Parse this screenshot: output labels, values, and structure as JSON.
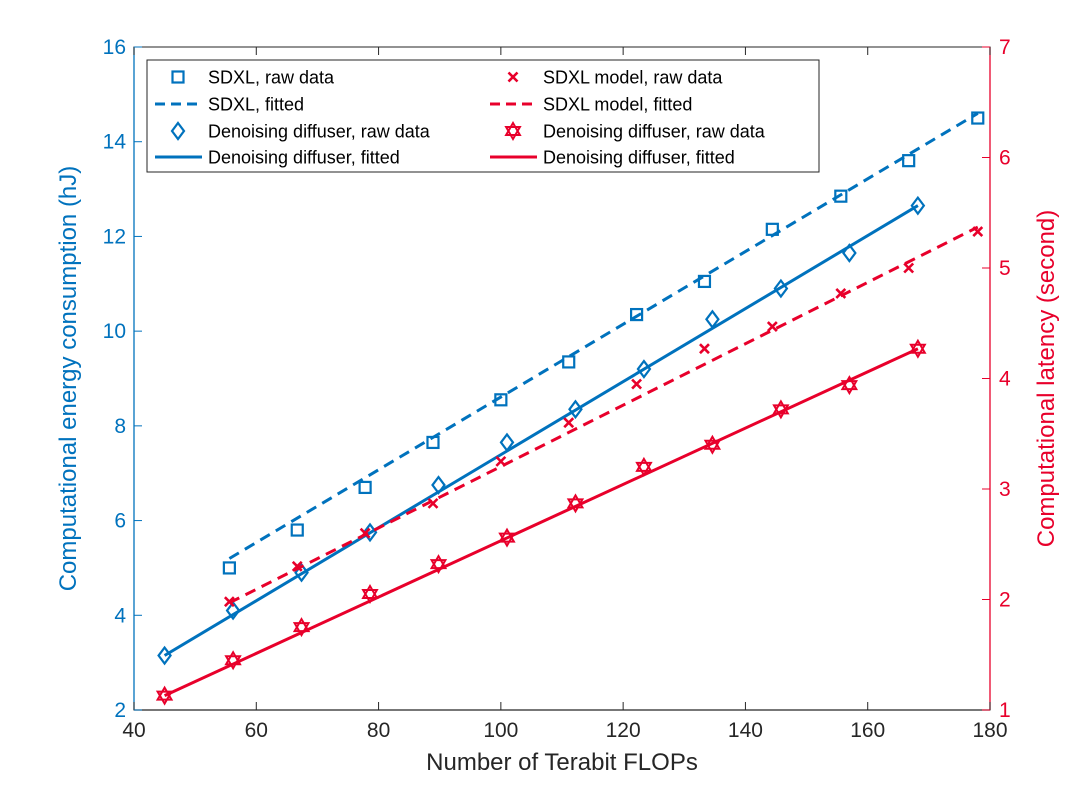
{
  "colors": {
    "left_axis": "#0072BD",
    "right_axis": "#E8002B",
    "blue": "#0072BD",
    "red": "#E8002B"
  },
  "chart_data": {
    "type": "scatter",
    "title": "",
    "xlabel": "Number of Terabit FLOPs",
    "ylabel_left": "Computational energy consumption (hJ)",
    "ylabel_right": "Computational latency (second)",
    "xlim": [
      40,
      180
    ],
    "ylim_left": [
      2,
      16
    ],
    "ylim_right": [
      1,
      7
    ],
    "xticks": [
      "40",
      "60",
      "80",
      "100",
      "120",
      "140",
      "160",
      "180"
    ],
    "yticks_left": [
      "2",
      "4",
      "6",
      "8",
      "10",
      "12",
      "14",
      "16"
    ],
    "yticks_right": [
      "1",
      "2",
      "3",
      "4",
      "5",
      "6",
      "7"
    ],
    "legend_position": "top-left",
    "series": [
      {
        "name": "SDXL, raw data",
        "axis": "left",
        "style": "square-marker",
        "color": "#0072BD",
        "x": [
          55.6,
          66.7,
          77.8,
          88.9,
          100,
          111.1,
          122.2,
          133.3,
          144.4,
          155.6,
          166.7,
          178
        ],
        "y": [
          5.0,
          5.8,
          6.7,
          7.65,
          8.55,
          9.35,
          10.35,
          11.05,
          12.15,
          12.85,
          13.6,
          14.5
        ]
      },
      {
        "name": "SDXL, fitted",
        "axis": "left",
        "style": "dashed-line",
        "color": "#0072BD",
        "x": [
          55.6,
          178
        ],
        "y": [
          5.2,
          14.6
        ]
      },
      {
        "name": "Denoising diffuser, raw data",
        "axis": "left",
        "style": "diamond-marker",
        "color": "#0072BD",
        "x": [
          45,
          56.2,
          67.4,
          78.6,
          89.8,
          101,
          112.2,
          123.4,
          134.6,
          145.8,
          157,
          168.2
        ],
        "y": [
          3.15,
          4.1,
          4.9,
          5.75,
          6.75,
          7.65,
          8.35,
          9.2,
          10.25,
          10.9,
          11.65,
          12.65
        ]
      },
      {
        "name": "Denoising diffuser, fitted",
        "axis": "left",
        "style": "solid-line",
        "color": "#0072BD",
        "x": [
          45,
          168.2
        ],
        "y": [
          3.15,
          12.65
        ]
      },
      {
        "name": "SDXL model, raw data",
        "axis": "right",
        "style": "x-marker",
        "color": "#E8002B",
        "x": [
          55.6,
          66.7,
          77.8,
          88.9,
          100,
          111.1,
          122.2,
          133.3,
          144.4,
          155.6,
          166.7,
          178
        ],
        "y": [
          1.98,
          2.3,
          2.6,
          2.87,
          3.25,
          3.6,
          3.95,
          4.27,
          4.47,
          4.77,
          5.0,
          5.33
        ]
      },
      {
        "name": "SDXL model, fitted",
        "axis": "right",
        "style": "dashed-line",
        "color": "#E8002B",
        "x": [
          55.6,
          178
        ],
        "y": [
          1.97,
          5.37
        ]
      },
      {
        "name": "Denoising diffuser, raw data",
        "axis": "right",
        "style": "hexagram-marker",
        "color": "#E8002B",
        "x": [
          45,
          56.2,
          67.4,
          78.6,
          89.8,
          101,
          112.2,
          123.4,
          134.6,
          145.8,
          157,
          168.2
        ],
        "y": [
          1.13,
          1.45,
          1.75,
          2.05,
          2.32,
          2.56,
          2.87,
          3.2,
          3.4,
          3.72,
          3.94,
          4.27
        ]
      },
      {
        "name": "Denoising diffuser, fitted",
        "axis": "right",
        "style": "solid-line",
        "color": "#E8002B",
        "x": [
          45,
          168.2
        ],
        "y": [
          1.13,
          4.27
        ]
      }
    ]
  }
}
